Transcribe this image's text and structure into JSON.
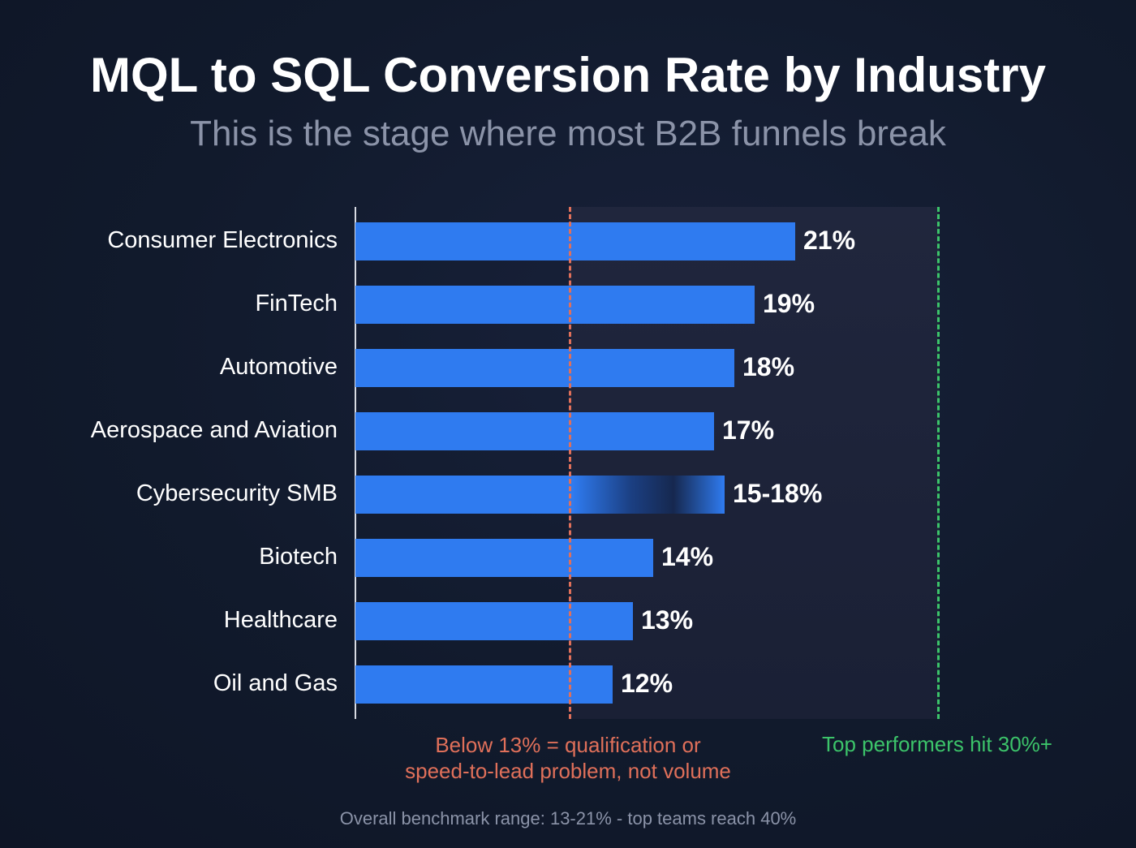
{
  "chart_data": {
    "type": "bar",
    "orientation": "horizontal",
    "title": "MQL to SQL Conversion Rate by Industry",
    "subtitle": "This is the stage where most B2B funnels break",
    "categories": [
      "Consumer Electronics",
      "FinTech",
      "Automotive",
      "Aerospace and Aviation",
      "Cybersecurity SMB",
      "Biotech",
      "Healthcare",
      "Oil and Gas"
    ],
    "values": [
      21,
      19,
      18,
      17,
      18,
      14,
      13,
      12
    ],
    "range_low": [
      null,
      null,
      null,
      null,
      15,
      null,
      null,
      null
    ],
    "labels": [
      "21%",
      "19%",
      "18%",
      "17%",
      "15-18%",
      "14%",
      "13%",
      "12%"
    ],
    "annotations": {
      "red_note_line1": "Below 13% = qualification or",
      "red_note_line2": "speed-to-lead problem, not volume",
      "green_note": "Top performers hit 30%+"
    },
    "footer": "Overall benchmark range: 13-21% - top teams reach 40%",
    "colors": {
      "bar": "#2f7bf0",
      "red": "#e0705a",
      "green": "#3cc46a"
    }
  }
}
